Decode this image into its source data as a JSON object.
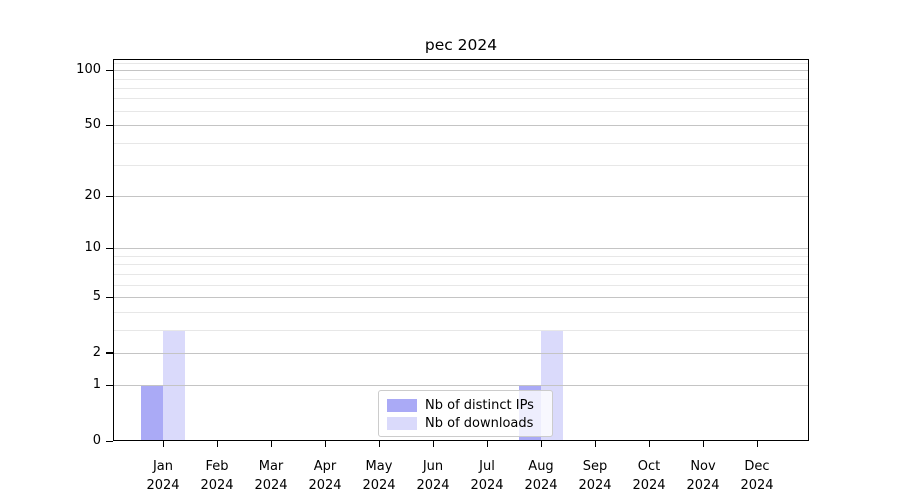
{
  "chart_data": {
    "type": "bar",
    "title": "pec 2024",
    "categories": [
      "Jan",
      "Feb",
      "Mar",
      "Apr",
      "May",
      "Jun",
      "Jul",
      "Aug",
      "Sep",
      "Oct",
      "Nov",
      "Dec"
    ],
    "category_year": "2024",
    "series": [
      {
        "name": "Nb of distinct IPs",
        "color": "#aaaaf6",
        "values": [
          1,
          0,
          0,
          0,
          0,
          0,
          0,
          1,
          0,
          0,
          0,
          0
        ]
      },
      {
        "name": "Nb of downloads",
        "color": "#dadafb",
        "values": [
          3,
          0,
          0,
          0,
          0,
          0,
          0,
          3,
          0,
          0,
          0,
          0
        ]
      }
    ],
    "xlabel": "",
    "ylabel": "",
    "yscale": "log1p",
    "ylim": [
      0,
      115
    ],
    "yticks": [
      0,
      1,
      2,
      5,
      10,
      20,
      50,
      100
    ],
    "minor_gridline_values": [
      3,
      4,
      6,
      7,
      8,
      9,
      30,
      40,
      60,
      70,
      80,
      90,
      110
    ],
    "grid": true,
    "legend_position": "lower center",
    "colors": {
      "major_grid": "#c4c4c4",
      "minor_grid": "#e7e7e7",
      "axis": "#000000",
      "text": "#000000",
      "legend_border": "#cccccc",
      "background": "#ffffff"
    }
  }
}
